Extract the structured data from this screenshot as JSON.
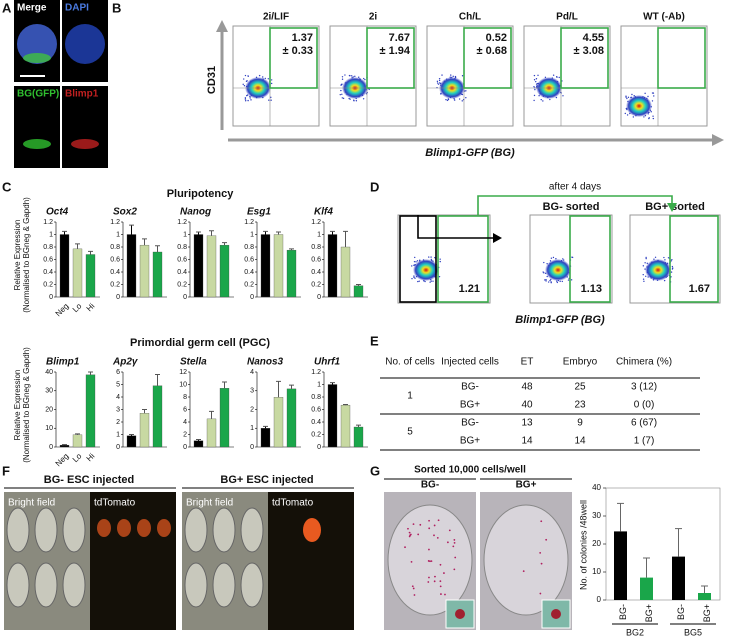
{
  "panel_labels": [
    "A",
    "B",
    "C",
    "D",
    "E",
    "F",
    "G"
  ],
  "panel_a": {
    "labels": [
      "Merge",
      "DAPI",
      "BG(GFP)",
      "Blimp1"
    ]
  },
  "panel_b": {
    "y_label": "CD31",
    "x_label": "Blimp1-GFP (BG)",
    "plots": [
      {
        "title": "2i/LIF",
        "value": "1.37",
        "error": "± 0.33"
      },
      {
        "title": "2i",
        "value": "7.67",
        "error": "± 1.94"
      },
      {
        "title": "Ch/L",
        "value": "0.52",
        "error": "± 0.68"
      },
      {
        "title": "Pd/L",
        "value": "4.55",
        "error": "± 3.08"
      },
      {
        "title": "WT (-Ab)"
      }
    ]
  },
  "panel_c": {
    "y_label": [
      "Relative Expression",
      "(Normalised to BGneg & Gapdh)"
    ],
    "categories": [
      "Neg",
      "Lo",
      "Hi"
    ],
    "colors": [
      "#000000",
      "#c8d9a2",
      "#1aa64a"
    ],
    "rows": [
      {
        "title": "Pluripotency",
        "charts": [
          {
            "gene": "Oct4",
            "ylim": [
              0,
              1.2
            ],
            "yticks": [
              0,
              0.2,
              0.4,
              0.6,
              0.8,
              1,
              1.2
            ],
            "values": [
              1.0,
              0.77,
              0.68
            ],
            "errors": [
              0.05,
              0.08,
              0.05
            ]
          },
          {
            "gene": "Sox2",
            "ylim": [
              0,
              1.2
            ],
            "yticks": [
              0,
              0.2,
              0.4,
              0.6,
              0.8,
              1,
              1.2
            ],
            "values": [
              1.0,
              0.83,
              0.72
            ],
            "errors": [
              0.15,
              0.1,
              0.1
            ]
          },
          {
            "gene": "Nanog",
            "ylim": [
              0,
              1.2
            ],
            "yticks": [
              0,
              0.2,
              0.4,
              0.6,
              0.8,
              1,
              1.2
            ],
            "values": [
              1.0,
              0.98,
              0.83
            ],
            "errors": [
              0.04,
              0.08,
              0.04
            ]
          },
          {
            "gene": "Esg1",
            "ylim": [
              0,
              1.2
            ],
            "yticks": [
              0,
              0.2,
              0.4,
              0.6,
              0.8,
              1,
              1.2
            ],
            "values": [
              1.0,
              1.0,
              0.75
            ],
            "errors": [
              0.05,
              0.04,
              0.02
            ]
          },
          {
            "gene": "Klf4",
            "ylim": [
              0,
              1.2
            ],
            "yticks": [
              0,
              0.2,
              0.4,
              0.6,
              0.8,
              1,
              1.2
            ],
            "values": [
              1.0,
              0.8,
              0.18
            ],
            "errors": [
              0.05,
              0.25,
              0.02
            ]
          }
        ]
      },
      {
        "title": "Primordial germ cell (PGC)",
        "charts": [
          {
            "gene": "Blimp1",
            "ylim": [
              0,
              40
            ],
            "yticks": [
              0,
              10,
              20,
              30,
              40
            ],
            "values": [
              1,
              6.5,
              38.5
            ],
            "errors": [
              0.3,
              0.5,
              1.5
            ]
          },
          {
            "gene": "Ap2γ",
            "ylim": [
              0,
              6
            ],
            "yticks": [
              0,
              1,
              2,
              3,
              4,
              5,
              6
            ],
            "values": [
              0.9,
              2.7,
              4.9
            ],
            "errors": [
              0.1,
              0.3,
              0.9
            ]
          },
          {
            "gene": "Stella",
            "ylim": [
              0,
              12
            ],
            "yticks": [
              0,
              2,
              4,
              6,
              8,
              10,
              12
            ],
            "values": [
              1,
              4.5,
              9.4
            ],
            "errors": [
              0.2,
              1.2,
              1.0
            ]
          },
          {
            "gene": "Nanos3",
            "ylim": [
              0,
              4
            ],
            "yticks": [
              0,
              1,
              2,
              3,
              4
            ],
            "values": [
              1,
              2.65,
              3.1
            ],
            "errors": [
              0.1,
              0.85,
              0.2
            ]
          },
          {
            "gene": "Uhrf1",
            "ylim": [
              0,
              1.2
            ],
            "yticks": [
              0,
              0.2,
              0.4,
              0.6,
              0.8,
              1,
              1.2
            ],
            "values": [
              1.0,
              0.67,
              0.32
            ],
            "errors": [
              0.03,
              0.01,
              0.03
            ]
          }
        ]
      }
    ]
  },
  "panel_d": {
    "arrow_label": "after 4 days",
    "x_label": "Blimp1-GFP (BG)",
    "plots": [
      {
        "value": "1.21"
      },
      {
        "title": "BG- sorted",
        "value": "1.13"
      },
      {
        "title": "BG+ sorted",
        "value": "1.67"
      }
    ]
  },
  "panel_e": {
    "header": [
      "No. of cells",
      "Injected cells",
      "ET",
      "Embryo",
      "Chimera (%)"
    ],
    "rows": [
      [
        "1",
        "BG-",
        "48",
        "25",
        "3 (12)"
      ],
      [
        "",
        "BG+",
        "40",
        "23",
        "0 (0)"
      ],
      [
        "5",
        "BG-",
        "13",
        "9",
        "6 (67)"
      ],
      [
        "",
        "BG+",
        "14",
        "14",
        "1 (7)"
      ]
    ]
  },
  "panel_f": {
    "headers": [
      "BG- ESC injected",
      "BG+ ESC injected"
    ],
    "image_labels": [
      "Bright field",
      "tdTomato"
    ]
  },
  "panel_g": {
    "title": "Sorted 10,000 cells/well",
    "wells": [
      "BG-",
      "BG+"
    ],
    "chart": {
      "y_label": "No. of colonies /48well",
      "ylim": [
        0,
        40
      ],
      "yticks": [
        0,
        10,
        20,
        30,
        40
      ],
      "categories": [
        "BG-",
        "BG+",
        "BG-",
        "BG+"
      ],
      "groups": [
        "BG2",
        "BG5"
      ],
      "values": [
        24.5,
        8,
        15.5,
        2.5
      ],
      "errors": [
        10,
        7,
        10,
        2.5
      ],
      "colors": [
        "#000000",
        "#1aa64a"
      ]
    }
  }
}
